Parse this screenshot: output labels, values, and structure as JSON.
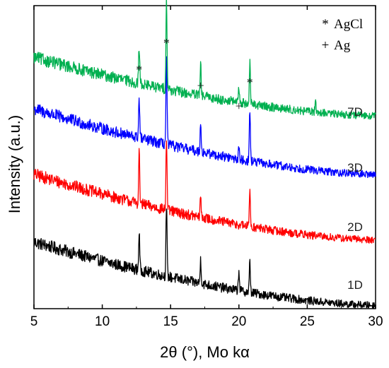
{
  "chart_data": {
    "type": "line",
    "xlabel": "2θ (°), Mo kα",
    "ylabel": "Intensity (a.u.)",
    "xlim": [
      5,
      30
    ],
    "xticks": [
      5,
      10,
      15,
      20,
      25,
      30
    ],
    "yticks_shown": false,
    "legend": {
      "position": "top-right",
      "entries": [
        {
          "symbol": "*",
          "label": "AgCl"
        },
        {
          "symbol": "+",
          "label": "Ag"
        }
      ]
    },
    "peak_positions": [
      12.7,
      14.7,
      17.2,
      20.0,
      20.8
    ],
    "annotations": [
      {
        "symbol": "*",
        "x": 12.7
      },
      {
        "symbol": "*",
        "x": 14.7
      },
      {
        "symbol": "+",
        "x": 17.2
      },
      {
        "symbol": "+",
        "x": 20.0
      },
      {
        "symbol": "*",
        "x": 20.8
      }
    ],
    "series": [
      {
        "name": "1D",
        "color": "#000000",
        "offset": 0.0,
        "background_start": 0.92,
        "background_end": 0.0,
        "noise": 0.085,
        "peaks": [
          [
            12.7,
            0.55
          ],
          [
            14.7,
            1.05
          ],
          [
            17.2,
            0.35
          ],
          [
            20.0,
            0.3
          ],
          [
            20.8,
            0.45
          ]
        ]
      },
      {
        "name": "2D",
        "color": "#ff0000",
        "offset": 0.95,
        "background_start": 0.95,
        "background_end": 0.0,
        "noise": 0.085,
        "peaks": [
          [
            12.7,
            0.75
          ],
          [
            14.7,
            1.05
          ],
          [
            17.2,
            0.3
          ],
          [
            20.8,
            0.55
          ]
        ]
      },
      {
        "name": "3D",
        "color": "#0000ff",
        "offset": 1.9,
        "background_start": 0.95,
        "background_end": 0.0,
        "noise": 0.085,
        "peaks": [
          [
            12.7,
            0.6
          ],
          [
            14.7,
            1.3
          ],
          [
            17.2,
            0.45
          ],
          [
            20.0,
            0.15
          ],
          [
            20.8,
            0.75
          ]
        ]
      },
      {
        "name": "7D",
        "color": "#00b050",
        "offset": 2.75,
        "background_start": 0.85,
        "background_end": 0.0,
        "noise": 0.085,
        "peaks": [
          [
            12.7,
            0.55
          ],
          [
            14.7,
            1.35
          ],
          [
            17.2,
            0.45
          ],
          [
            20.0,
            0.2
          ],
          [
            20.8,
            0.6
          ],
          [
            25.6,
            0.15
          ]
        ]
      }
    ]
  }
}
